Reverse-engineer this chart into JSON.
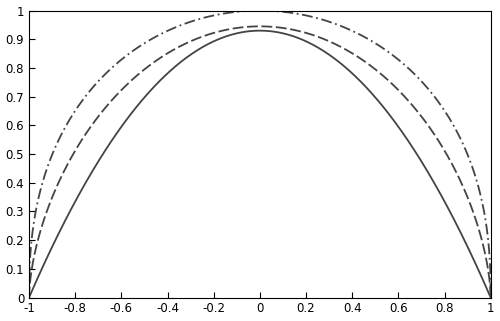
{
  "xlim": [
    -1,
    1
  ],
  "ylim": [
    0,
    1
  ],
  "xticks": [
    -1,
    -0.8,
    -0.6,
    -0.4,
    -0.2,
    0,
    0.2,
    0.4,
    0.6,
    0.8,
    1
  ],
  "yticks": [
    0,
    0.1,
    0.2,
    0.3,
    0.4,
    0.5,
    0.6,
    0.7,
    0.8,
    0.9,
    1
  ],
  "line_color": "#444444",
  "background_color": "#ffffff",
  "dashdot_amp": 1.0,
  "dashdot_power": 0.42,
  "dashed_amp": 0.945,
  "dashed_power": 0.6,
  "solid_amp": 0.93,
  "solid_power": 1.0,
  "linewidth": 1.3,
  "figsize": [
    5.0,
    3.21
  ],
  "dpi": 100
}
